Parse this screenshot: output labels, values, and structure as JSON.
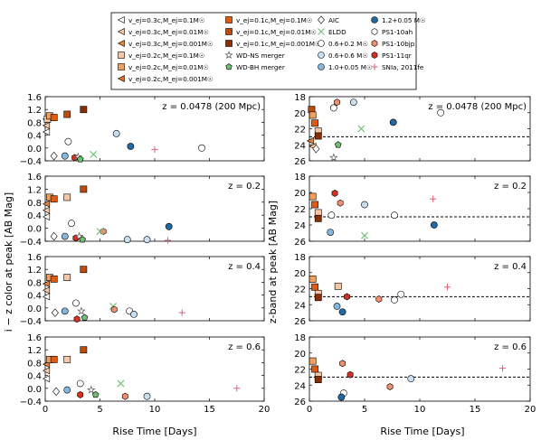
{
  "legend": {
    "col1": [
      {
        "label": "v_ej=0.3c,M_ej=0.1M☉",
        "marker": "tri-left",
        "color": "#ffffff"
      },
      {
        "label": "v_ej=0.3c,M_ej=0.01M☉",
        "marker": "tri-left",
        "color": "#f6c7a4"
      },
      {
        "label": "v_ej=0.3c,M_ej=0.001M☉",
        "marker": "tri-left",
        "color": "#e8823a"
      },
      {
        "label": "v_ej=0.2c,M_ej=0.1M☉",
        "marker": "square",
        "color": "#f6c7a4"
      },
      {
        "label": "v_ej=0.2c,M_ej=0.01M☉",
        "marker": "square",
        "color": "#f0a060"
      },
      {
        "label": "v_ej=0.2c,M_ej=0.001M☉",
        "marker": "tri-left",
        "color": "#e06f2a"
      }
    ],
    "col2": [
      {
        "label": "v_ej=0.1c,M_ej=0.1M☉",
        "marker": "square",
        "color": "#e05a10"
      },
      {
        "label": "v_ej=0.1c,M_ej=0.01M☉",
        "marker": "square",
        "color": "#c04a0a"
      },
      {
        "label": "v_ej=0.1c,M_ej=0.001M☉",
        "marker": "square",
        "color": "#8b2e05"
      },
      {
        "label": "WD-NS merger",
        "marker": "star",
        "color": "#ffffff"
      },
      {
        "label": "WD-BH merger",
        "marker": "pentagon",
        "color": "#6fbf73"
      }
    ],
    "col3": [
      {
        "label": "AIC",
        "marker": "diamond",
        "color": "#ffffff"
      },
      {
        "label": "ELDD",
        "marker": "x",
        "color": "#6fbf73"
      },
      {
        "label": "0.6+0.2 M☉",
        "marker": "circle",
        "color": "#ffffff"
      },
      {
        "label": "0.6+0.6 M☉",
        "marker": "circle",
        "color": "#c9dff0"
      },
      {
        "label": "1.0+0.05 M☉",
        "marker": "circle",
        "color": "#86b6dc"
      }
    ],
    "col4": [
      {
        "label": "1.2+0.05 M☉",
        "marker": "circle",
        "color": "#1f6aa5"
      },
      {
        "label": "PS1-10ah",
        "marker": "hexagon",
        "color": "#ffffff"
      },
      {
        "label": "PS1-10bjp",
        "marker": "hexagon",
        "color": "#f08f70"
      },
      {
        "label": "PS1-11qr",
        "marker": "hexagon",
        "color": "#d7301f"
      },
      {
        "label": "SNIa, 2011fe",
        "marker": "plus",
        "color": "#e0607a"
      }
    ]
  },
  "axes": {
    "left_ylabel": "i − z color at peak [AB Mag]",
    "right_ylabel": "z-band at peak [AB Mag]",
    "xlabel": "Rise Time [Days]",
    "left_yticks": [
      "−0.4",
      "0.0",
      "0.4",
      "0.8",
      "1.2",
      "1.6"
    ],
    "right_yticks": [
      "26",
      "24",
      "22",
      "20",
      "18"
    ],
    "xticks": [
      "0",
      "5",
      "10",
      "15",
      "20"
    ]
  },
  "chart_data": [
    {
      "type": "scatter",
      "panel": "left-1",
      "annotation": "z = 0.0478 (200 Mpc)",
      "xlim": [
        0,
        20
      ],
      "ylim": [
        -0.4,
        1.6
      ],
      "xlabel": "",
      "ylabel": "i − z color at peak [AB Mag]",
      "points": [
        {
          "series": "v_ej=0.3c,M_ej=0.1M☉",
          "x": 0.1,
          "y": 0.5
        },
        {
          "series": "v_ej=0.3c,M_ej=0.01M☉",
          "x": 0.1,
          "y": 0.7
        },
        {
          "series": "v_ej=0.3c,M_ej=0.001M☉",
          "x": 0.1,
          "y": 0.9
        },
        {
          "series": "v_ej=0.2c,M_ej=0.1M☉",
          "x": 0.2,
          "y": 0.9
        },
        {
          "series": "v_ej=0.2c,M_ej=0.01M☉",
          "x": 0.4,
          "y": 1.0
        },
        {
          "series": "v_ej=0.1c,M_ej=0.1M☉",
          "x": 0.8,
          "y": 0.95
        },
        {
          "series": "v_ej=0.1c,M_ej=0.01M☉",
          "x": 2.0,
          "y": 1.05
        },
        {
          "series": "v_ej=0.1c,M_ej=0.001M☉",
          "x": 3.5,
          "y": 1.2
        },
        {
          "series": "AIC",
          "x": 0.8,
          "y": -0.25
        },
        {
          "series": "0.6+0.2 M☉",
          "x": 2.1,
          "y": 0.2
        },
        {
          "series": "1.0+0.05 M☉",
          "x": 1.8,
          "y": -0.25
        },
        {
          "series": "PS1-11qr",
          "x": 2.7,
          "y": -0.3
        },
        {
          "series": "WD-NS merger",
          "x": 3.0,
          "y": -0.28
        },
        {
          "series": "WD-BH merger",
          "x": 3.2,
          "y": -0.35
        },
        {
          "series": "ELDD",
          "x": 4.4,
          "y": -0.2
        },
        {
          "series": "0.6+0.6 M☉",
          "x": 6.5,
          "y": 0.45
        },
        {
          "series": "1.2+0.05 M☉",
          "x": 7.8,
          "y": 0.05
        },
        {
          "series": "SNIa, 2011fe",
          "x": 10.0,
          "y": -0.05
        },
        {
          "series": "0.6+0.2 M☉",
          "x": 14.3,
          "y": 0.0
        }
      ]
    },
    {
      "type": "scatter",
      "panel": "left-2",
      "annotation": "z = 0.2",
      "xlim": [
        0,
        20
      ],
      "ylim": [
        -0.4,
        1.6
      ],
      "xlabel": "",
      "ylabel": "",
      "points": [
        {
          "series": "v_ej=0.3c,M_ej=0.1M☉",
          "x": 0.1,
          "y": 0.35
        },
        {
          "series": "v_ej=0.3c,M_ej=0.01M☉",
          "x": 0.1,
          "y": 0.55
        },
        {
          "series": "v_ej=0.3c,M_ej=0.001M☉",
          "x": 0.1,
          "y": 0.75
        },
        {
          "series": "v_ej=0.2c,M_ej=0.01M☉",
          "x": 0.4,
          "y": 0.95
        },
        {
          "series": "v_ej=0.1c,M_ej=0.1M☉",
          "x": 0.8,
          "y": 0.9
        },
        {
          "series": "v_ej=0.2c,M_ej=0.1M☉",
          "x": 2.0,
          "y": 0.95
        },
        {
          "series": "v_ej=0.1c,M_ej=0.01M☉",
          "x": 3.5,
          "y": 1.2
        },
        {
          "series": "AIC",
          "x": 0.8,
          "y": -0.25
        },
        {
          "series": "1.0+0.05 M☉",
          "x": 1.8,
          "y": -0.25
        },
        {
          "series": "0.6+0.2 M☉",
          "x": 2.4,
          "y": 0.15
        },
        {
          "series": "PS1-11qr",
          "x": 2.8,
          "y": -0.3
        },
        {
          "series": "WD-NS merger",
          "x": 3.1,
          "y": -0.25
        },
        {
          "series": "WD-BH merger",
          "x": 3.4,
          "y": -0.35
        },
        {
          "series": "PS1-10bjp",
          "x": 5.3,
          "y": -0.1
        },
        {
          "series": "ELDD",
          "x": 5.0,
          "y": -0.1
        },
        {
          "series": "0.6+0.6 M☉",
          "x": 7.5,
          "y": -0.35
        },
        {
          "series": "0.6+0.6 M☉",
          "x": 9.3,
          "y": -0.35
        },
        {
          "series": "1.2+0.05 M☉",
          "x": 11.3,
          "y": 0.05
        },
        {
          "series": "SNIa, 2011fe",
          "x": 11.2,
          "y": -0.4
        }
      ]
    },
    {
      "type": "scatter",
      "panel": "left-3",
      "annotation": "z = 0.4",
      "xlim": [
        0,
        20
      ],
      "ylim": [
        -0.4,
        1.6
      ],
      "xlabel": "",
      "ylabel": "",
      "points": [
        {
          "series": "v_ej=0.3c,M_ej=0.1M☉",
          "x": 0.1,
          "y": 0.35
        },
        {
          "series": "v_ej=0.3c,M_ej=0.01M☉",
          "x": 0.1,
          "y": 0.55
        },
        {
          "series": "v_ej=0.3c,M_ej=0.001M☉",
          "x": 0.1,
          "y": 0.75
        },
        {
          "series": "v_ej=0.2c,M_ej=0.01M☉",
          "x": 0.4,
          "y": 0.95
        },
        {
          "series": "v_ej=0.1c,M_ej=0.1M☉",
          "x": 0.8,
          "y": 0.9
        },
        {
          "series": "v_ej=0.2c,M_ej=0.1M☉",
          "x": 2.0,
          "y": 0.95
        },
        {
          "series": "v_ej=0.1c,M_ej=0.01M☉",
          "x": 3.5,
          "y": 1.2
        },
        {
          "series": "AIC",
          "x": 0.9,
          "y": -0.15
        },
        {
          "series": "1.0+0.05 M☉",
          "x": 1.8,
          "y": -0.1
        },
        {
          "series": "0.6+0.2 M☉",
          "x": 2.8,
          "y": 0.15
        },
        {
          "series": "PS1-11qr",
          "x": 2.9,
          "y": -0.35
        },
        {
          "series": "WD-NS merger",
          "x": 3.3,
          "y": -0.1
        },
        {
          "series": "WD-BH merger",
          "x": 3.6,
          "y": -0.3
        },
        {
          "series": "ELDD",
          "x": 6.2,
          "y": 0.05
        },
        {
          "series": "PS1-10bjp",
          "x": 6.3,
          "y": -0.05
        },
        {
          "series": "0.6+0.2 M☉",
          "x": 7.7,
          "y": -0.1
        },
        {
          "series": "0.6+0.6 M☉",
          "x": 8.1,
          "y": -0.2
        },
        {
          "series": "SNIa, 2011fe",
          "x": 12.5,
          "y": -0.15
        }
      ]
    },
    {
      "type": "scatter",
      "panel": "left-4",
      "annotation": "z = 0.6",
      "xlim": [
        0,
        20
      ],
      "ylim": [
        -0.4,
        1.6
      ],
      "xlabel": "Rise Time [Days]",
      "ylabel": "",
      "points": [
        {
          "series": "v_ej=0.3c,M_ej=0.1M☉",
          "x": 0.1,
          "y": 0.3
        },
        {
          "series": "v_ej=0.3c,M_ej=0.01M☉",
          "x": 0.1,
          "y": 0.55
        },
        {
          "series": "v_ej=0.3c,M_ej=0.001M☉",
          "x": 0.1,
          "y": 0.75
        },
        {
          "series": "v_ej=0.2c,M_ej=0.01M☉",
          "x": 0.4,
          "y": 0.9
        },
        {
          "series": "v_ej=0.1c,M_ej=0.1M☉",
          "x": 0.8,
          "y": 0.9
        },
        {
          "series": "v_ej=0.2c,M_ej=0.1M☉",
          "x": 2.0,
          "y": 0.9
        },
        {
          "series": "v_ej=0.1c,M_ej=0.01M☉",
          "x": 3.5,
          "y": 1.2
        },
        {
          "series": "AIC",
          "x": 1.0,
          "y": -0.1
        },
        {
          "series": "1.0+0.05 M☉",
          "x": 2.0,
          "y": -0.05
        },
        {
          "series": "0.6+0.2 M☉",
          "x": 3.2,
          "y": 0.15
        },
        {
          "series": "PS1-11qr",
          "x": 3.2,
          "y": -0.2
        },
        {
          "series": "WD-NS merger",
          "x": 4.2,
          "y": -0.05
        },
        {
          "series": "WD-BH merger",
          "x": 4.6,
          "y": -0.2
        },
        {
          "series": "ELDD",
          "x": 6.9,
          "y": 0.15
        },
        {
          "series": "PS1-10bjp",
          "x": 7.3,
          "y": -0.25
        },
        {
          "series": "0.6+0.6 M☉",
          "x": 9.3,
          "y": -0.25
        },
        {
          "series": "SNIa, 2011fe",
          "x": 17.5,
          "y": 0.0
        }
      ]
    },
    {
      "type": "scatter",
      "panel": "right-1",
      "annotation": "z = 0.0478 (200 Mpc)",
      "xlim": [
        0,
        20
      ],
      "ylim": [
        26,
        18
      ],
      "xlabel": "",
      "ylabel": "z-band at peak [AB Mag]",
      "dashed_line_y": 23.0,
      "points": [
        {
          "series": "v_ej=0.1c,M_ej=0.01M☉",
          "x": 0.2,
          "y": 19.6
        },
        {
          "series": "v_ej=0.2c,M_ej=0.01M☉",
          "x": 0.3,
          "y": 20.3
        },
        {
          "series": "v_ej=0.1c,M_ej=0.1M☉",
          "x": 0.5,
          "y": 21.3
        },
        {
          "series": "v_ej=0.2c,M_ej=0.1M☉",
          "x": 0.8,
          "y": 22.3
        },
        {
          "series": "v_ej=0.1c,M_ej=0.001M☉",
          "x": 0.8,
          "y": 22.9
        },
        {
          "series": "v_ej=0.3c,M_ej=0.001M☉",
          "x": 0.1,
          "y": 23.5
        },
        {
          "series": "v_ej=0.3c,M_ej=0.01M☉",
          "x": 0.3,
          "y": 24.2
        },
        {
          "series": "AIC",
          "x": 0.6,
          "y": 24.5
        },
        {
          "series": "0.6+0.2 M☉",
          "x": 2.2,
          "y": 19.4
        },
        {
          "series": "PS1-10bjp",
          "x": 2.5,
          "y": 18.7
        },
        {
          "series": "0.6+0.6 M☉",
          "x": 4.0,
          "y": 18.7
        },
        {
          "series": "ELDD",
          "x": 4.7,
          "y": 22.0
        },
        {
          "series": "WD-BH merger",
          "x": 2.6,
          "y": 24.0
        },
        {
          "series": "WD-NS merger",
          "x": 2.2,
          "y": 25.6
        },
        {
          "series": "1.2+0.05 M☉",
          "x": 7.6,
          "y": 21.2
        },
        {
          "series": "0.6+0.2 M☉",
          "x": 11.9,
          "y": 20.0
        }
      ]
    },
    {
      "type": "scatter",
      "panel": "right-2",
      "annotation": "z = 0.2",
      "xlim": [
        0,
        20
      ],
      "ylim": [
        26,
        18
      ],
      "xlabel": "",
      "ylabel": "",
      "dashed_line_y": 23.0,
      "points": [
        {
          "series": "v_ej=0.2c,M_ej=0.01M☉",
          "x": 0.3,
          "y": 20.5
        },
        {
          "series": "v_ej=0.1c,M_ej=0.1M☉",
          "x": 0.5,
          "y": 21.5
        },
        {
          "series": "v_ej=0.2c,M_ej=0.1M☉",
          "x": 0.8,
          "y": 22.5
        },
        {
          "series": "v_ej=0.1c,M_ej=0.001M☉",
          "x": 0.8,
          "y": 23.2
        },
        {
          "series": "PS1-11qr",
          "x": 2.3,
          "y": 20.1
        },
        {
          "series": "PS1-10bjp",
          "x": 2.8,
          "y": 21.3
        },
        {
          "series": "0.6+0.2 M☉",
          "x": 2.0,
          "y": 22.8
        },
        {
          "series": "1.0+0.05 M☉",
          "x": 1.9,
          "y": 24.9
        },
        {
          "series": "ELDD",
          "x": 5.0,
          "y": 25.3
        },
        {
          "series": "0.6+0.6 M☉",
          "x": 5.0,
          "y": 21.5
        },
        {
          "series": "0.6+0.2 M☉",
          "x": 7.7,
          "y": 22.8
        },
        {
          "series": "SNIa, 2011fe",
          "x": 11.2,
          "y": 20.8
        },
        {
          "series": "1.2+0.05 M☉",
          "x": 11.3,
          "y": 24.0
        }
      ]
    },
    {
      "type": "scatter",
      "panel": "right-3",
      "annotation": "z = 0.4",
      "xlim": [
        0,
        20
      ],
      "ylim": [
        26,
        18
      ],
      "xlabel": "",
      "ylabel": "",
      "dashed_line_y": 23.0,
      "points": [
        {
          "series": "v_ej=0.2c,M_ej=0.01M☉",
          "x": 0.3,
          "y": 20.8
        },
        {
          "series": "v_ej=0.1c,M_ej=0.1M☉",
          "x": 0.5,
          "y": 21.8
        },
        {
          "series": "v_ej=0.2c,M_ej=0.1M☉",
          "x": 0.8,
          "y": 22.6
        },
        {
          "series": "v_ej=0.1c,M_ej=0.001M☉",
          "x": 0.8,
          "y": 23.1
        },
        {
          "series": "v_ej=0.2c,M_ej=0.1M☉",
          "x": 2.6,
          "y": 21.7
        },
        {
          "series": "PS1-11qr",
          "x": 3.4,
          "y": 23.0
        },
        {
          "series": "1.0+0.05 M☉",
          "x": 2.5,
          "y": 24.2
        },
        {
          "series": "1.2+0.05 M☉",
          "x": 3.0,
          "y": 24.9
        },
        {
          "series": "PS1-10bjp",
          "x": 6.3,
          "y": 23.3
        },
        {
          "series": "0.6+0.2 M☉",
          "x": 7.7,
          "y": 23.4
        },
        {
          "series": "0.6+0.2 M☉",
          "x": 8.3,
          "y": 22.7
        },
        {
          "series": "SNIa, 2011fe",
          "x": 12.5,
          "y": 21.8
        }
      ]
    },
    {
      "type": "scatter",
      "panel": "right-4",
      "annotation": "z = 0.6",
      "xlim": [
        0,
        20
      ],
      "ylim": [
        26,
        18
      ],
      "xlabel": "Rise Time [Days]",
      "ylabel": "",
      "dashed_line_y": 23.0,
      "points": [
        {
          "series": "v_ej=0.2c,M_ej=0.01M☉",
          "x": 0.3,
          "y": 21.0
        },
        {
          "series": "v_ej=0.1c,M_ej=0.1M☉",
          "x": 0.5,
          "y": 22.0
        },
        {
          "series": "v_ej=0.2c,M_ej=0.1M☉",
          "x": 0.8,
          "y": 22.8
        },
        {
          "series": "v_ej=0.1c,M_ej=0.001M☉",
          "x": 0.8,
          "y": 23.3
        },
        {
          "series": "PS1-10bjp",
          "x": 3.0,
          "y": 21.3
        },
        {
          "series": "PS1-11qr",
          "x": 3.7,
          "y": 22.7
        },
        {
          "series": "0.6+0.2 M☉",
          "x": 3.1,
          "y": 25.0
        },
        {
          "series": "1.2+0.05 M☉",
          "x": 2.9,
          "y": 25.5
        },
        {
          "series": "PS1-10bjp",
          "x": 7.3,
          "y": 24.2
        },
        {
          "series": "0.6+0.6 M☉",
          "x": 9.2,
          "y": 23.2
        },
        {
          "series": "SNIa, 2011fe",
          "x": 17.5,
          "y": 21.9
        }
      ]
    }
  ]
}
